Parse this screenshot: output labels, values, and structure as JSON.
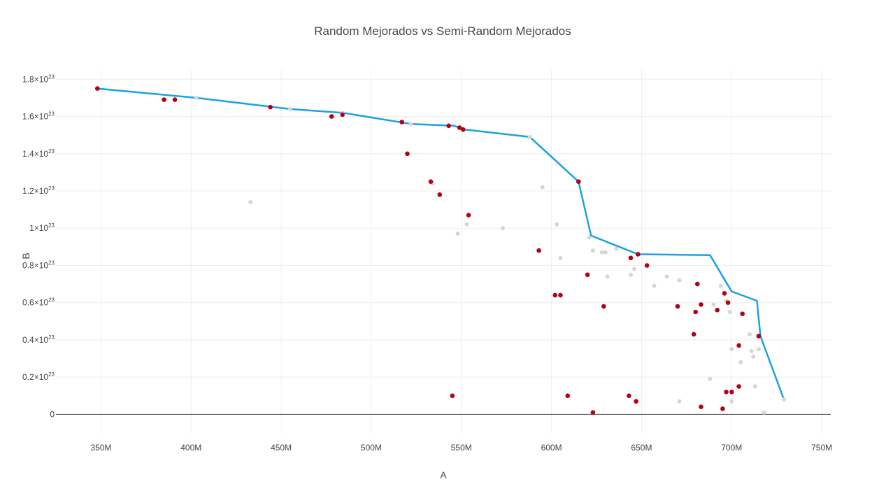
{
  "chart_data": {
    "type": "scatter",
    "title": "Random Mejorados vs Semi-Random Mejorados",
    "xlabel": "A",
    "ylabel": "B",
    "xlim": [
      325,
      755
    ],
    "ylim": [
      -0.1,
      1.85
    ],
    "x_ticks": [
      {
        "value": 350,
        "label": "350M"
      },
      {
        "value": 400,
        "label": "400M"
      },
      {
        "value": 450,
        "label": "450M"
      },
      {
        "value": 500,
        "label": "500M"
      },
      {
        "value": 550,
        "label": "550M"
      },
      {
        "value": 600,
        "label": "600M"
      },
      {
        "value": 650,
        "label": "650M"
      },
      {
        "value": 700,
        "label": "700M"
      },
      {
        "value": 750,
        "label": "750M"
      }
    ],
    "y_ticks": [
      {
        "value": 0,
        "label": "0"
      },
      {
        "value": 0.2,
        "label": "0.2×10",
        "exp": "23"
      },
      {
        "value": 0.4,
        "label": "0.4×10",
        "exp": "23"
      },
      {
        "value": 0.6,
        "label": "0.6×10",
        "exp": "23"
      },
      {
        "value": 0.8,
        "label": "0.8×10",
        "exp": "23"
      },
      {
        "value": 1.0,
        "label": "1×10",
        "exp": "23"
      },
      {
        "value": 1.2,
        "label": "1.2×10",
        "exp": "23"
      },
      {
        "value": 1.4,
        "label": "1.4×10",
        "exp": "23"
      },
      {
        "value": 1.6,
        "label": "1.6×10",
        "exp": "23"
      },
      {
        "value": 1.8,
        "label": "1.8×10",
        "exp": "23"
      }
    ],
    "colors": {
      "front_line": "#1ba1e2",
      "red_points": "#b10018",
      "grey_points": "#d6d6d6"
    },
    "series": [
      {
        "kind": "line",
        "x": [
          348,
          403,
          455,
          484,
          522,
          546,
          552,
          588,
          615,
          622,
          648,
          688,
          700,
          714,
          716,
          729
        ],
        "y": [
          1.75,
          1.7,
          1.64,
          1.62,
          1.56,
          1.55,
          1.53,
          1.49,
          1.25,
          0.96,
          0.86,
          0.855,
          0.66,
          0.61,
          0.42,
          0.08
        ]
      },
      {
        "kind": "points",
        "color_key": "grey_points",
        "points": [
          [
            403,
            1.7
          ],
          [
            455,
            1.64
          ],
          [
            484,
            1.62
          ],
          [
            522,
            1.56
          ],
          [
            534,
            1.24
          ],
          [
            433,
            1.14
          ],
          [
            548,
            0.97
          ],
          [
            553,
            1.02
          ],
          [
            573,
            1.0
          ],
          [
            595,
            1.22
          ],
          [
            603,
            1.02
          ],
          [
            605,
            0.84
          ],
          [
            621,
            0.95
          ],
          [
            623,
            0.88
          ],
          [
            628,
            0.87
          ],
          [
            630,
            0.87
          ],
          [
            631,
            0.74
          ],
          [
            636,
            0.89
          ],
          [
            644,
            0.75
          ],
          [
            646,
            0.78
          ],
          [
            657,
            0.69
          ],
          [
            664,
            0.74
          ],
          [
            671,
            0.72
          ],
          [
            671,
            0.07
          ],
          [
            688,
            0.19
          ],
          [
            690,
            0.59
          ],
          [
            694,
            0.69
          ],
          [
            697,
            0.61
          ],
          [
            699,
            0.55
          ],
          [
            700,
            0.35
          ],
          [
            700,
            0.07
          ],
          [
            705,
            0.28
          ],
          [
            710,
            0.43
          ],
          [
            711,
            0.34
          ],
          [
            712,
            0.31
          ],
          [
            713,
            0.15
          ],
          [
            715,
            0.35
          ],
          [
            718,
            0.01
          ],
          [
            729,
            0.08
          ],
          [
            588,
            1.49
          ]
        ]
      },
      {
        "kind": "points",
        "color_key": "red_points",
        "points": [
          [
            348,
            1.75
          ],
          [
            385,
            1.69
          ],
          [
            391,
            1.69
          ],
          [
            444,
            1.65
          ],
          [
            478,
            1.6
          ],
          [
            484,
            1.61
          ],
          [
            517,
            1.57
          ],
          [
            520,
            1.4
          ],
          [
            533,
            1.25
          ],
          [
            538,
            1.18
          ],
          [
            543,
            1.55
          ],
          [
            549,
            1.54
          ],
          [
            551,
            1.53
          ],
          [
            554,
            1.07
          ],
          [
            545,
            0.1
          ],
          [
            593,
            0.88
          ],
          [
            602,
            0.64
          ],
          [
            605,
            0.64
          ],
          [
            609,
            0.1
          ],
          [
            615,
            1.25
          ],
          [
            620,
            0.75
          ],
          [
            623,
            0.01
          ],
          [
            629,
            0.58
          ],
          [
            643,
            0.1
          ],
          [
            644,
            0.84
          ],
          [
            647,
            0.07
          ],
          [
            648,
            0.86
          ],
          [
            653,
            0.8
          ],
          [
            670,
            0.58
          ],
          [
            679,
            0.43
          ],
          [
            680,
            0.55
          ],
          [
            681,
            0.7
          ],
          [
            683,
            0.59
          ],
          [
            683,
            0.04
          ],
          [
            692,
            0.56
          ],
          [
            695,
            0.03
          ],
          [
            696,
            0.65
          ],
          [
            697,
            0.12
          ],
          [
            698,
            0.6
          ],
          [
            700,
            0.12
          ],
          [
            704,
            0.37
          ],
          [
            704,
            0.15
          ],
          [
            706,
            0.54
          ],
          [
            715,
            0.42
          ]
        ]
      }
    ]
  }
}
